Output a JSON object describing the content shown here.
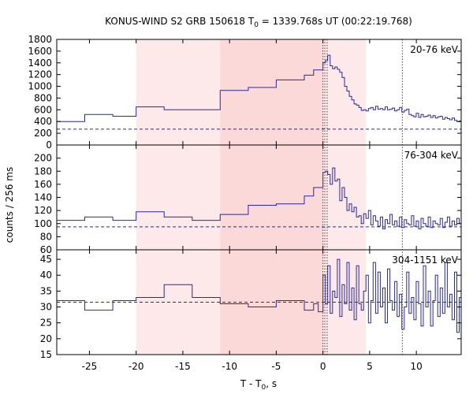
{
  "chart_data": {
    "type": "line",
    "title_prefix": "KONUS-WIND S2 GRB 150618 T",
    "title_sub": "0",
    "title_suffix": " = 1339.768s UT (00:22:19.768)",
    "ylabel": "counts / 256 ms",
    "xlabel_prefix": "T - T",
    "xlabel_sub": "0",
    "xlabel_suffix": ", s",
    "xlim": [
      -28.5,
      14.8
    ],
    "x_ticks": [
      -25,
      -20,
      -15,
      -10,
      -5,
      0,
      5,
      10
    ],
    "x_tick_labels": [
      "-25",
      "-20",
      "-15",
      "-10",
      "-5",
      "0",
      "5",
      "10"
    ],
    "shaded_regions": [
      {
        "x0": -20,
        "x1": 4.6,
        "color": "#fde9e9"
      },
      {
        "x0": -11,
        "x1": 0.0,
        "color": "#fcd9d9"
      }
    ],
    "vlines": [
      0.0,
      0.2,
      0.45,
      8.5
    ],
    "series_color": "#2929a3",
    "panels": [
      {
        "label": "20-76 keV",
        "ylim": [
          0,
          1800
        ],
        "y_ticks": [
          0,
          200,
          400,
          600,
          800,
          1000,
          1200,
          1400,
          1600,
          1800
        ],
        "y_tick_labels": [
          "0",
          "200",
          "400",
          "600",
          "800",
          "1000",
          "1200",
          "1400",
          "1600",
          "1800"
        ],
        "background": 270,
        "x": [
          -28.5,
          -25.5,
          -22.5,
          -20.0,
          -17.0,
          -11.0,
          -8.0,
          -5.0,
          -2.0,
          -1.0,
          0.0,
          0.256,
          0.512,
          0.768,
          1.024,
          1.28,
          1.536,
          1.792,
          2.048,
          2.304,
          2.56,
          2.816,
          3.072,
          3.328,
          3.584,
          3.84,
          4.096,
          4.352,
          4.608,
          4.864,
          5.12,
          5.376,
          5.632,
          5.888,
          6.144,
          6.4,
          6.656,
          6.912,
          7.168,
          7.424,
          7.68,
          7.936,
          8.192,
          8.448,
          8.704,
          8.96,
          9.216,
          9.472,
          9.728,
          9.984,
          10.24,
          10.496,
          10.752,
          11.008,
          11.264,
          11.52,
          11.776,
          12.032,
          12.288,
          12.544,
          12.8,
          13.056,
          13.312,
          13.568,
          13.824,
          14.08,
          14.336,
          14.592
        ],
        "y": [
          400,
          520,
          490,
          650,
          600,
          930,
          980,
          1110,
          1190,
          1280,
          1400,
          1440,
          1530,
          1350,
          1300,
          1330,
          1290,
          1240,
          1150,
          1000,
          920,
          830,
          770,
          700,
          680,
          640,
          590,
          600,
          580,
          620,
          640,
          600,
          660,
          610,
          620,
          600,
          650,
          600,
          610,
          630,
          580,
          600,
          640,
          560,
          590,
          610,
          520,
          500,
          480,
          540,
          470,
          520,
          480,
          490,
          510,
          470,
          500,
          460,
          480,
          490,
          440,
          470,
          450,
          430,
          460,
          420,
          400,
          410
        ]
      },
      {
        "label": "76-304 keV",
        "ylim": [
          60,
          220
        ],
        "y_ticks": [
          60,
          80,
          100,
          120,
          140,
          160,
          180,
          200
        ],
        "y_tick_labels": [
          "60",
          "80",
          "100",
          "120",
          "140",
          "160",
          "180",
          "200"
        ],
        "background": 95,
        "x": [
          -28.5,
          -25.5,
          -22.5,
          -20.0,
          -17.0,
          -14.0,
          -11.0,
          -8.0,
          -5.0,
          -2.0,
          -1.0,
          0.0,
          0.256,
          0.512,
          0.768,
          1.024,
          1.28,
          1.536,
          1.792,
          2.048,
          2.304,
          2.56,
          2.816,
          3.072,
          3.328,
          3.584,
          3.84,
          4.096,
          4.352,
          4.608,
          4.864,
          5.12,
          5.376,
          5.632,
          5.888,
          6.144,
          6.4,
          6.656,
          6.912,
          7.168,
          7.424,
          7.68,
          7.936,
          8.192,
          8.448,
          8.704,
          8.96,
          9.216,
          9.472,
          9.728,
          9.984,
          10.24,
          10.496,
          10.752,
          11.008,
          11.264,
          11.52,
          11.776,
          12.032,
          12.288,
          12.544,
          12.8,
          13.056,
          13.312,
          13.568,
          13.824,
          14.08,
          14.336,
          14.592
        ],
        "y": [
          105,
          110,
          105,
          118,
          110,
          105,
          114,
          128,
          130,
          142,
          155,
          178,
          180,
          175,
          160,
          185,
          165,
          168,
          135,
          155,
          140,
          120,
          130,
          118,
          125,
          110,
          112,
          100,
          115,
          108,
          120,
          98,
          112,
          104,
          96,
          110,
          92,
          106,
          100,
          114,
          98,
          104,
          96,
          110,
          94,
          106,
          100,
          98,
          112,
          96,
          104,
          92,
          108,
          100,
          96,
          110,
          94,
          104,
          100,
          98,
          108,
          94,
          102,
          110,
          96,
          104,
          98,
          108,
          100
        ]
      },
      {
        "label": "304-1151 keV",
        "ylim": [
          15,
          48
        ],
        "y_ticks": [
          15,
          20,
          25,
          30,
          35,
          40,
          45
        ],
        "y_tick_labels": [
          "15",
          "20",
          "25",
          "30",
          "35",
          "40",
          "45"
        ],
        "background": 31.5,
        "x": [
          -28.5,
          -25.5,
          -22.5,
          -20.0,
          -17.0,
          -14.0,
          -11.0,
          -8.0,
          -5.0,
          -2.0,
          -1.0,
          -0.5,
          0.0,
          0.256,
          0.512,
          0.768,
          1.024,
          1.28,
          1.536,
          1.792,
          2.048,
          2.304,
          2.56,
          2.816,
          3.072,
          3.328,
          3.584,
          3.84,
          4.096,
          4.352,
          4.608,
          4.864,
          5.12,
          5.376,
          5.632,
          5.888,
          6.144,
          6.4,
          6.656,
          6.912,
          7.168,
          7.424,
          7.68,
          7.936,
          8.192,
          8.448,
          8.704,
          8.96,
          9.216,
          9.472,
          9.728,
          9.984,
          10.24,
          10.496,
          10.752,
          11.008,
          11.264,
          11.52,
          11.776,
          12.032,
          12.288,
          12.544,
          12.8,
          13.056,
          13.312,
          13.568,
          13.824,
          14.08,
          14.336,
          14.592
        ],
        "y": [
          32,
          29,
          32,
          33,
          37,
          33,
          31,
          30,
          32,
          29,
          31,
          28.5,
          40,
          31,
          43,
          28,
          35,
          33,
          45,
          27,
          37,
          31,
          44,
          29,
          36,
          26,
          43,
          31,
          29,
          35,
          40,
          25,
          32,
          44,
          28,
          41,
          30,
          36,
          25,
          42,
          32,
          29,
          38,
          27,
          34,
          23,
          30,
          41,
          28,
          33,
          26,
          38,
          31,
          24,
          43,
          30,
          35,
          24,
          32,
          40,
          27,
          36,
          28,
          44,
          30,
          34,
          26,
          41,
          22,
          33
        ]
      }
    ]
  }
}
